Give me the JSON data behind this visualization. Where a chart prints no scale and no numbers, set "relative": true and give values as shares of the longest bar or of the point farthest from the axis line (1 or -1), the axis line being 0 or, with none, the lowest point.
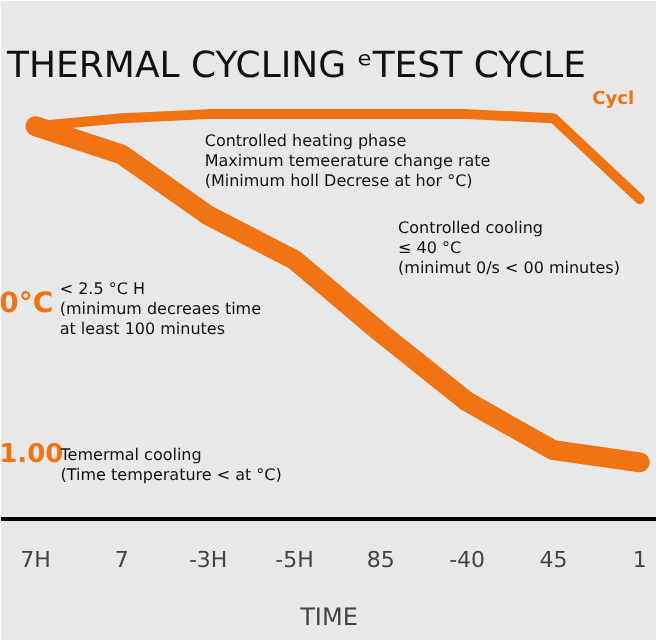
{
  "chart_data": {
    "type": "line",
    "title": "THERMAL CYCLING ᵉTEST CYCLE",
    "xlabel": "TIME",
    "categories": [
      "7H",
      "7",
      "-3H",
      "-5H",
      "85",
      "-40",
      "45",
      "1"
    ],
    "relative": true,
    "series": [
      {
        "color": "#f07414",
        "values": [
          0.97,
          0.99,
          1.0,
          1.0,
          1.0,
          1.0,
          0.99,
          0.79
        ]
      },
      {
        "color": "#f07414",
        "values": [
          0.97,
          0.9,
          0.75,
          0.64,
          0.46,
          0.29,
          0.17,
          0.14
        ]
      }
    ],
    "annotations": [
      "Controlled heating phase\nMaximum temeerature change rate\n(Minimum holl Decrese at hor °C)",
      "0°C",
      "< 2.5 °C H\n(minimum decreaes time\nat least 100 minutes",
      "Controlled cooling\n≤ 40 °C\n(minimut 0/s < 00 minutes)",
      "1.00",
      "Temermal cooling\n(Time temperature < at °C)",
      "Cycl"
    ]
  }
}
